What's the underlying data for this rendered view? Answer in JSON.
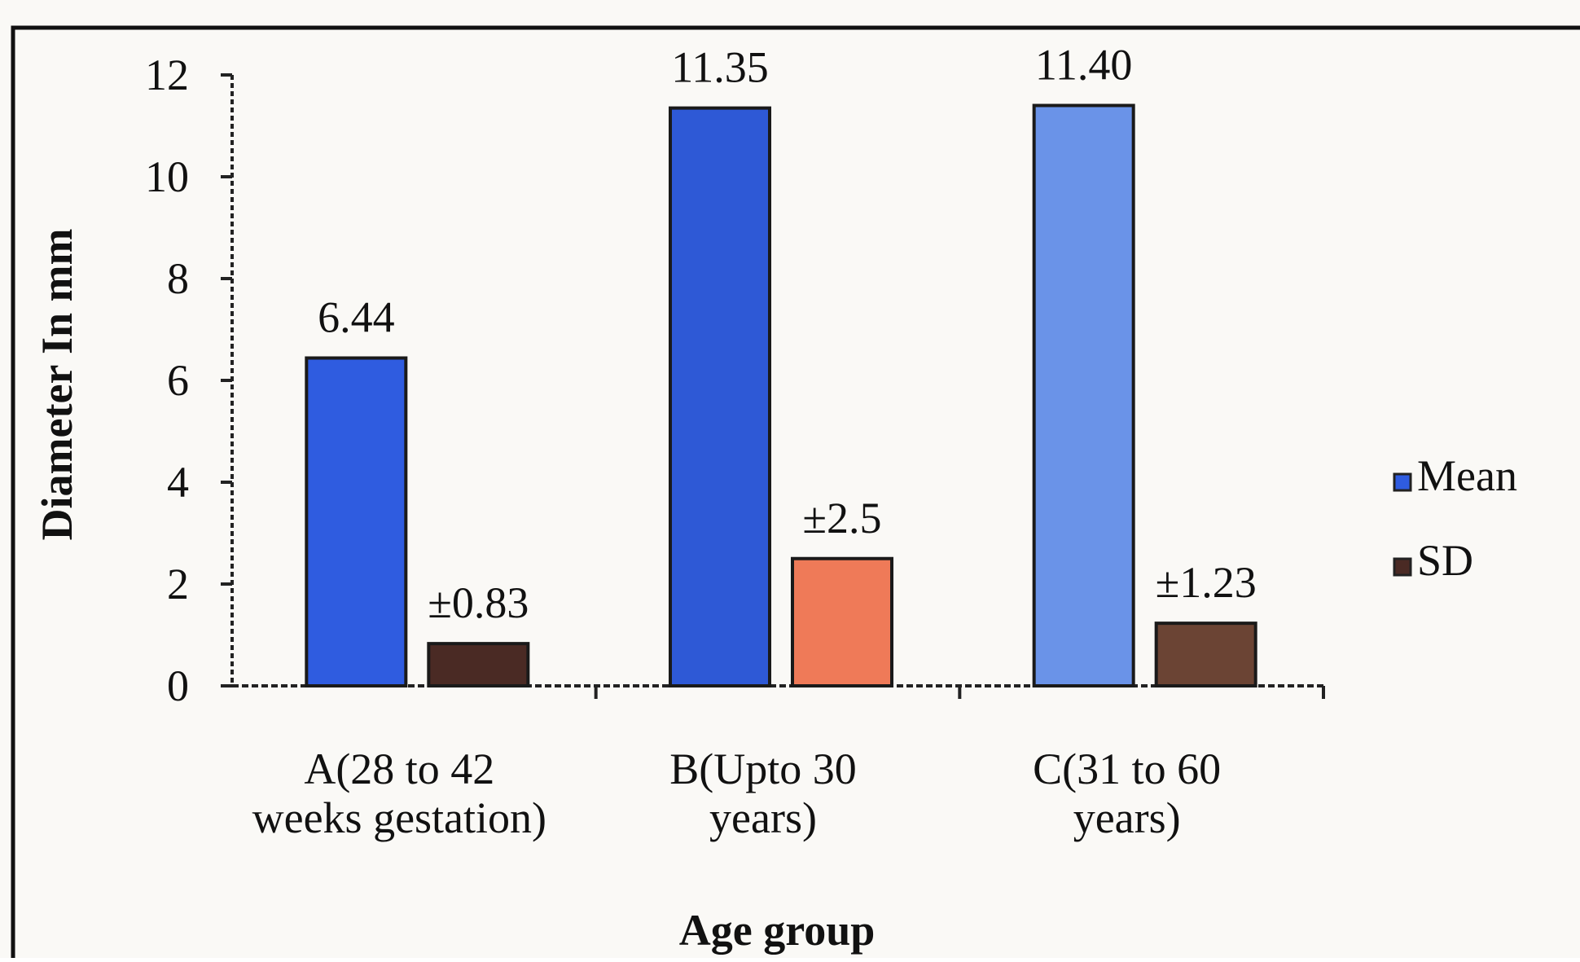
{
  "chart_data": {
    "type": "bar",
    "categories": [
      [
        "A(28 to 42",
        "weeks gestation)"
      ],
      [
        "B(Upto 30",
        "years)"
      ],
      [
        "C(31 to 60",
        "years)"
      ]
    ],
    "series": [
      {
        "name": "Mean",
        "values": [
          6.44,
          11.35,
          11.4
        ],
        "labels": [
          "6.44",
          "11.35",
          "11.40"
        ],
        "colors": [
          "#2f5ce0",
          "#2e59d6",
          "#6a93e8"
        ]
      },
      {
        "name": "SD",
        "values": [
          0.83,
          2.5,
          1.23
        ],
        "labels": [
          "±0.83",
          "±2.5",
          "±1.23"
        ],
        "colors": [
          "#4a2a24",
          "#ef7a58",
          "#6b4434"
        ]
      }
    ],
    "xlabel": "Age group",
    "ylabel": "Diameter In mm",
    "ylim": [
      0,
      12
    ],
    "yticks": [
      0,
      2,
      4,
      6,
      8,
      10,
      12
    ],
    "grid": false,
    "legend_position": "right"
  },
  "colors": {
    "frame_border": "#111111",
    "background": "#faf9f6",
    "axis": "#222222"
  }
}
